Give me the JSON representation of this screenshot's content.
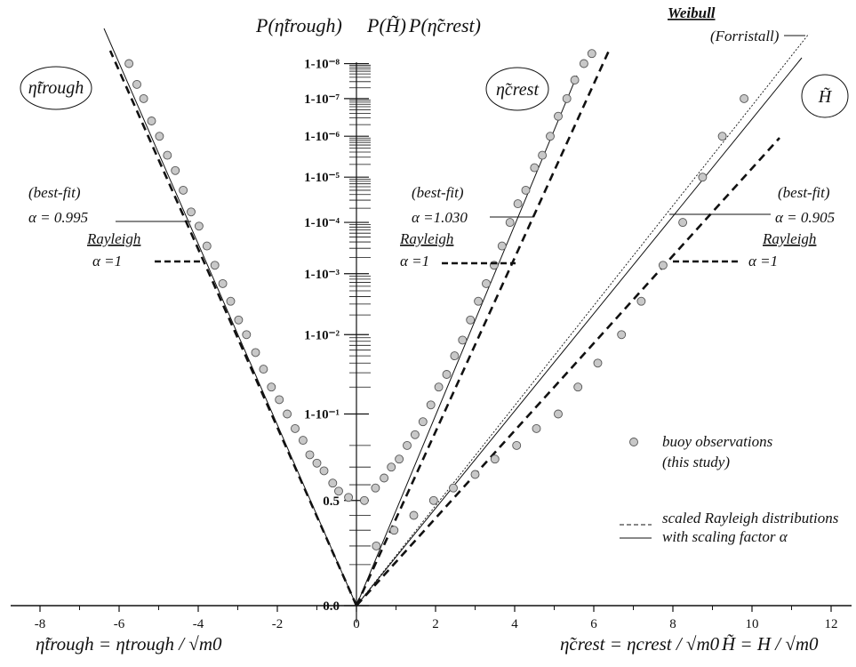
{
  "chart_data": {
    "type": "scatter",
    "title": "",
    "top_axis_labels": [
      "P(η̃trough)",
      "P(H̃)",
      "P(η̃crest)"
    ],
    "x_axis": {
      "min": -8.6,
      "max": 12.4,
      "ticks": [
        "-8",
        "-6",
        "-4",
        "-2",
        "0",
        "2",
        "4",
        "6",
        "8",
        "10",
        "12"
      ],
      "tick_values": [
        -8,
        -6,
        -4,
        -2,
        0,
        2,
        4,
        6,
        8,
        10,
        12
      ],
      "labels": [
        "η̃trough = ηtrough / √m0",
        "η̃crest = ηcrest / √m0",
        "H̃ = H / √m0"
      ]
    },
    "y_axis": {
      "scale": "Rayleigh probability (-ln P)^(1/2)",
      "ticks": [
        "0.0",
        "0.5",
        "1-10⁻¹",
        "1-10⁻²",
        "1-10⁻³",
        "1-10⁻⁴",
        "1-10⁻⁵",
        "1-10⁻⁶",
        "1-10⁻⁷",
        "1-10⁻⁸"
      ]
    },
    "panel_labels": [
      "η̃trough",
      "η̃crest",
      "H̃"
    ],
    "annotations": {
      "best_fit": "(best-fit)",
      "rayleigh": "Rayleigh",
      "alpha1": "α =1",
      "alpha_trough": "α = 0.995",
      "alpha_crest": "α =1.030",
      "alpha_H": "α = 0.905",
      "weibull": "Weibull",
      "forristall": "(Forristall)"
    },
    "legend": {
      "position": "bottom-right",
      "obs_line1": "buoy observations",
      "obs_line2": "(this study)",
      "dashed_line1": "scaled Rayleigh distributions",
      "dashed_line2": "with scaling factor α"
    },
    "series": [
      {
        "name": "buoy observations (troughs)",
        "x": [
          -0.2,
          -0.45,
          -0.6,
          -0.82,
          -1.0,
          -1.18,
          -1.35,
          -1.55,
          -1.75,
          -1.95,
          -2.15,
          -2.35,
          -2.55,
          -2.78,
          -2.98,
          -3.18,
          -3.38,
          -3.58,
          -3.78,
          -3.98,
          -4.18,
          -4.38,
          -4.58,
          -4.78,
          -4.98,
          -5.18,
          -5.38,
          -5.55,
          -5.75
        ],
        "p": [
          0.52,
          0.56,
          0.61,
          0.68,
          0.72,
          0.76,
          0.82,
          0.86,
          0.9,
          0.93,
          0.95,
          0.97,
          0.982,
          0.99,
          0.994,
          0.997,
          0.9985,
          0.9993,
          0.9997,
          0.99988,
          0.99994,
          0.99998,
          0.999993,
          0.999997,
          0.999999,
          0.9999996,
          0.9999999,
          0.99999996,
          0.99999999
        ]
      },
      {
        "name": "buoy observations (crests)",
        "x": [
          0.2,
          0.48,
          0.7,
          0.88,
          1.08,
          1.28,
          1.48,
          1.68,
          1.88,
          2.08,
          2.28,
          2.48,
          2.68,
          2.88,
          3.08,
          3.28,
          3.48,
          3.68,
          3.88,
          4.08,
          4.28,
          4.5,
          4.7,
          4.9,
          5.1,
          5.32,
          5.52,
          5.75,
          5.95
        ],
        "p": [
          0.5,
          0.58,
          0.64,
          0.7,
          0.74,
          0.8,
          0.84,
          0.88,
          0.92,
          0.95,
          0.965,
          0.98,
          0.988,
          0.994,
          0.997,
          0.9985,
          0.9993,
          0.9997,
          0.9999,
          0.99996,
          0.99998,
          0.999994,
          0.999997,
          0.999999,
          0.9999997,
          0.9999999,
          0.99999997,
          0.99999999,
          0.999999995
        ]
      },
      {
        "name": "buoy observations (wave heights)",
        "x": [
          0.5,
          0.95,
          1.45,
          1.95,
          2.45,
          3.0,
          3.5,
          4.05,
          4.55,
          5.1,
          5.6,
          6.1,
          6.7,
          7.2,
          7.75,
          8.25,
          8.75,
          9.25,
          9.8
        ],
        "p": [
          0.2,
          0.3,
          0.4,
          0.5,
          0.58,
          0.66,
          0.74,
          0.8,
          0.86,
          0.9,
          0.95,
          0.975,
          0.99,
          0.997,
          0.9993,
          0.9999,
          0.99999,
          0.999999,
          0.9999999
        ]
      }
    ]
  }
}
